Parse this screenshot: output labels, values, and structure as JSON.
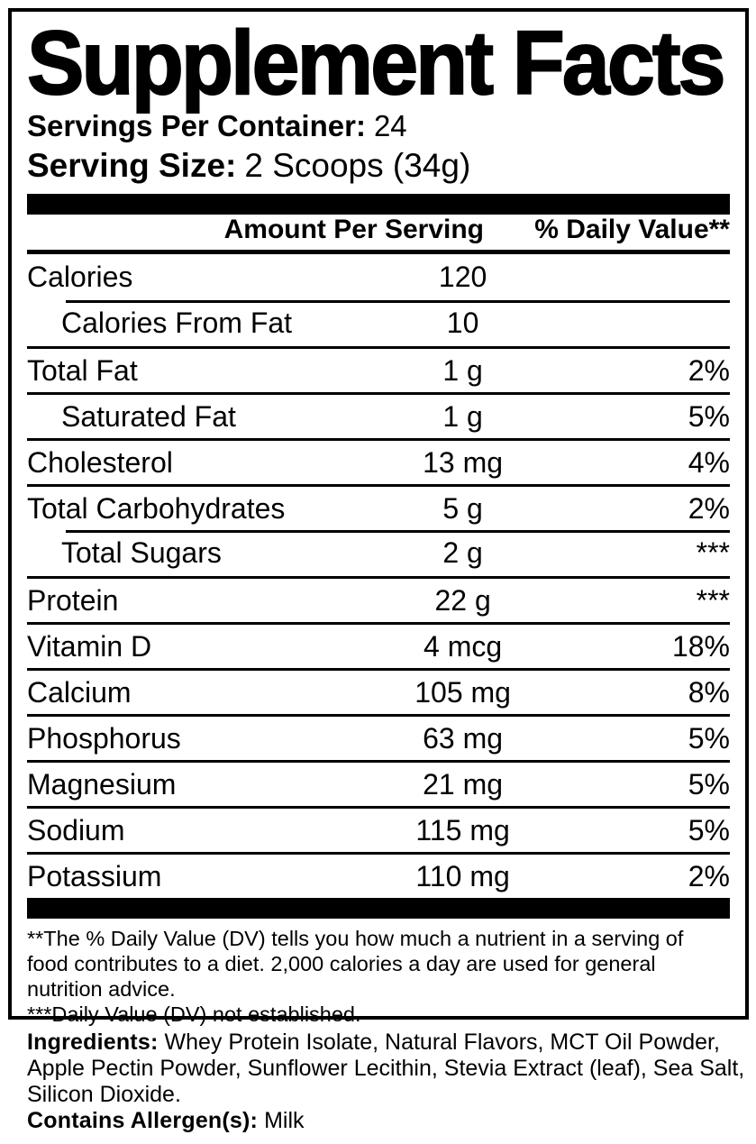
{
  "title": "Supplement Facts",
  "servings": {
    "label": "Servings Per Container:",
    "value": "24"
  },
  "serving_size": {
    "label": "Serving Size:",
    "value": "2 Scoops (34g)"
  },
  "table": {
    "amount_header": "Amount Per Serving",
    "dv_header": "% Daily Value**",
    "rows": [
      {
        "name": "Calories",
        "amount": "120",
        "dv": ""
      },
      {
        "name": "Calories From Fat",
        "amount": "10",
        "dv": ""
      },
      {
        "name": "Total Fat",
        "amount": "1 g",
        "dv": "2%"
      },
      {
        "name": "Saturated Fat",
        "amount": "1 g",
        "dv": "5%"
      },
      {
        "name": "Cholesterol",
        "amount": "13 mg",
        "dv": "4%"
      },
      {
        "name": "Total Carbohydrates",
        "amount": "5 g",
        "dv": "2%"
      },
      {
        "name": "Total Sugars",
        "amount": "2 g",
        "dv": "***"
      },
      {
        "name": "Protein",
        "amount": "22 g",
        "dv": "***"
      },
      {
        "name": "Vitamin D",
        "amount": "4 mcg",
        "dv": "18%"
      },
      {
        "name": "Calcium",
        "amount": "105 mg",
        "dv": "8%"
      },
      {
        "name": "Phosphorus",
        "amount": "63 mg",
        "dv": "5%"
      },
      {
        "name": "Magnesium",
        "amount": "21 mg",
        "dv": "5%"
      },
      {
        "name": "Sodium",
        "amount": "115 mg",
        "dv": "5%"
      },
      {
        "name": "Potassium",
        "amount": "110 mg",
        "dv": "2%"
      }
    ]
  },
  "footnotes": {
    "dv_note": "**The % Daily Value (DV) tells you how much a nutrient in a serving of food contributes to a diet. 2,000 calories a day are used for general nutrition advice.",
    "not_established_note": "***Daily Value (DV) not established."
  },
  "ingredients": {
    "label": "Ingredients:",
    "value": "Whey Protein Isolate, Natural Flavors, MCT Oil Powder, Apple Pectin Powder, Sunflower Lecithin, Stevia Extract (leaf), Sea Salt, Silicon Dioxide.",
    "allergen_label": "Contains Allergen(s):",
    "allergen_value": "Milk"
  },
  "colors": {
    "text": "#000000",
    "background": "#ffffff"
  }
}
